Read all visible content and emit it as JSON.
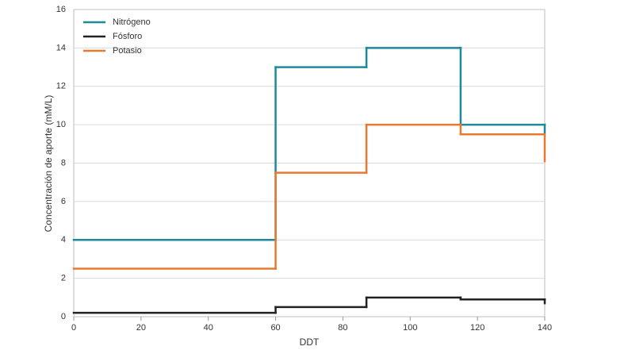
{
  "chart_data": {
    "type": "line",
    "step": "post",
    "x_label": "DDT",
    "y_label": "Concentración de aporte (mM/L)",
    "x": [
      0,
      60,
      87,
      115,
      140
    ],
    "series": [
      {
        "name": "Nitrógeno",
        "color": "#1b8a9b",
        "values": [
          4,
          13,
          14,
          10,
          9.6
        ]
      },
      {
        "name": "Fósforo",
        "color": "#222222",
        "values": [
          0.2,
          0.5,
          1,
          0.9,
          0.7
        ]
      },
      {
        "name": "Potasio",
        "color": "#e8792e",
        "values": [
          2.5,
          7.5,
          10,
          9.5,
          8.1
        ]
      }
    ],
    "xlim": [
      0,
      140
    ],
    "xticks": [
      0,
      20,
      40,
      60,
      80,
      100,
      120,
      140
    ],
    "ylim": [
      0,
      16
    ],
    "yticks": [
      0,
      2,
      4,
      6,
      8,
      10,
      12,
      14,
      16
    ],
    "grid": true,
    "legend": "upper-left"
  }
}
